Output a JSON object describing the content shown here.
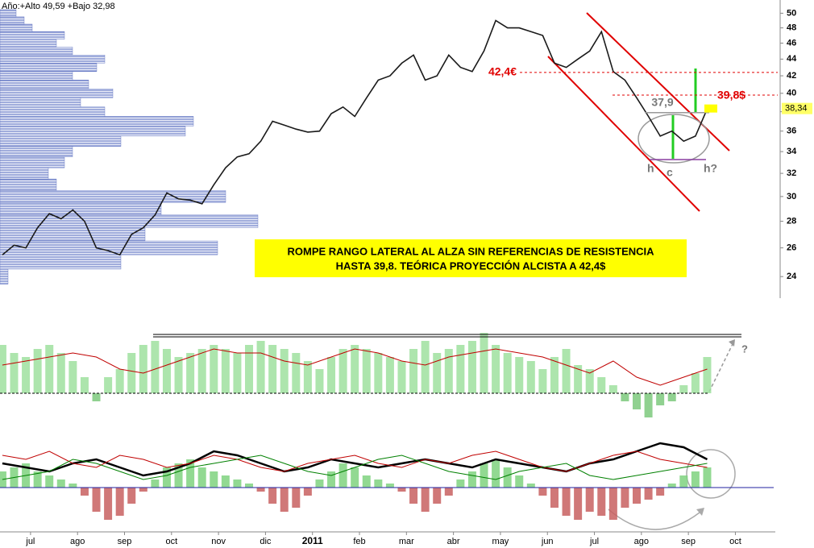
{
  "chart_data": [
    {
      "type": "price",
      "info": "Año:+Alto 49,59 +Bajo 32,98",
      "log_scale": true,
      "xlim": [
        -0.65,
        15.85
      ],
      "ylim": [
        22.7,
        51.3
      ],
      "yticks": [
        24,
        26,
        28,
        30,
        32,
        34,
        36,
        38,
        40,
        42,
        44,
        46,
        48,
        50
      ],
      "color": "#1a1a1a",
      "x": [
        -0.6,
        -0.35,
        -0.1,
        0.15,
        0.4,
        0.65,
        0.9,
        1.15,
        1.4,
        1.65,
        1.9,
        2.15,
        2.4,
        2.65,
        2.9,
        3.15,
        3.4,
        3.65,
        3.9,
        4.15,
        4.4,
        4.65,
        4.9,
        5.15,
        5.4,
        5.65,
        5.9,
        6.15,
        6.4,
        6.65,
        6.9,
        7.15,
        7.4,
        7.65,
        7.9,
        8.15,
        8.4,
        8.65,
        8.9,
        9.15,
        9.4,
        9.65,
        9.9,
        10.15,
        10.4,
        10.65,
        10.9,
        11.15,
        11.4,
        11.65,
        11.9,
        12.15,
        12.4,
        12.65,
        12.9,
        13.15,
        13.4,
        13.65,
        13.9,
        14.15,
        14.4
      ],
      "values": [
        25.5,
        26.2,
        26.0,
        27.5,
        28.6,
        28.2,
        28.9,
        28.0,
        26,
        25.8,
        25.5,
        27,
        27.5,
        28.5,
        30.3,
        29.8,
        29.7,
        29.4,
        31,
        32.5,
        33.5,
        33.8,
        35,
        37,
        36.6,
        36.2,
        35.9,
        36,
        37.8,
        38.5,
        37.5,
        39.5,
        41.5,
        42,
        43.5,
        44.5,
        41.5,
        42,
        44.5,
        43,
        42.5,
        45,
        49,
        48,
        48,
        47.5,
        47,
        43.5,
        43,
        44,
        45,
        47.5,
        42.5,
        41.5,
        39.5,
        37.5,
        35.5,
        36,
        35,
        35.5,
        38.3
      ],
      "volume_profile": {
        "color": "#5a6fc0",
        "prices": [
          24,
          25,
          26,
          27,
          28,
          29,
          30,
          31,
          32,
          33,
          34,
          35,
          36,
          37,
          38,
          39,
          40,
          41,
          42,
          43,
          44,
          45,
          46,
          47,
          48,
          49,
          50
        ],
        "values": [
          10,
          150,
          270,
          180,
          320,
          200,
          280,
          70,
          60,
          80,
          90,
          150,
          230,
          240,
          130,
          100,
          140,
          110,
          90,
          120,
          130,
          90,
          70,
          80,
          40,
          30,
          20
        ]
      },
      "levels": [
        {
          "value": 42.4,
          "label": "42,4€"
        },
        {
          "value": 39.8,
          "label": "39,8$"
        },
        {
          "value": 37.9,
          "label": "37,9"
        }
      ],
      "pattern_labels": [
        "h",
        "c",
        "h?"
      ],
      "last_price": {
        "value": 38.34,
        "label": "38,34"
      },
      "note": [
        "ROMPE RANGO LATERAL AL ALZA SIN REFERENCIAS DE RESISTENCIA",
        "HASTA 39,8. TEÓRICA PROYECCIÓN ALCISTA A 42,4$"
      ]
    },
    {
      "type": "oscillator",
      "xlim": [
        -0.65,
        15.85
      ],
      "ylim": [
        -48,
        100
      ],
      "x": [
        -0.6,
        -0.35,
        -0.1,
        0.15,
        0.4,
        0.65,
        0.9,
        1.15,
        1.4,
        1.65,
        1.9,
        2.15,
        2.4,
        2.65,
        2.9,
        3.15,
        3.4,
        3.65,
        3.9,
        4.15,
        4.4,
        4.65,
        4.9,
        5.15,
        5.4,
        5.65,
        5.9,
        6.15,
        6.4,
        6.65,
        6.9,
        7.15,
        7.4,
        7.65,
        7.9,
        8.15,
        8.4,
        8.65,
        8.9,
        9.15,
        9.4,
        9.65,
        9.9,
        10.15,
        10.4,
        10.65,
        10.9,
        11.15,
        11.4,
        11.65,
        11.9,
        12.15,
        12.4,
        12.65,
        12.9,
        13.15,
        13.4,
        13.65,
        13.9,
        14.15,
        14.4
      ],
      "histogram": {
        "color_positive": "#9fe09f",
        "color_negative": "#7cc97c",
        "values": [
          60,
          50,
          45,
          55,
          60,
          50,
          40,
          20,
          -10,
          20,
          30,
          50,
          60,
          65,
          55,
          45,
          50,
          55,
          60,
          55,
          50,
          60,
          65,
          60,
          55,
          50,
          40,
          30,
          45,
          55,
          60,
          55,
          50,
          45,
          40,
          55,
          65,
          50,
          55,
          60,
          65,
          75,
          60,
          50,
          45,
          40,
          30,
          45,
          55,
          35,
          30,
          20,
          10,
          -10,
          -20,
          -30,
          -15,
          -10,
          10,
          25,
          45
        ]
      },
      "lines": [
        {
          "color": "#c00000",
          "width": 1,
          "x": [
            -0.6,
            -0.1,
            0.4,
            0.9,
            1.4,
            1.9,
            2.4,
            2.9,
            3.4,
            3.9,
            4.4,
            4.9,
            5.4,
            5.9,
            6.4,
            6.9,
            7.4,
            7.9,
            8.4,
            8.9,
            9.4,
            9.9,
            10.4,
            10.9,
            11.4,
            11.9,
            12.4,
            12.9,
            13.4,
            13.9,
            14.4
          ],
          "values": [
            35,
            40,
            45,
            50,
            45,
            30,
            25,
            35,
            45,
            55,
            50,
            50,
            40,
            35,
            45,
            55,
            50,
            40,
            35,
            45,
            50,
            55,
            50,
            45,
            35,
            25,
            40,
            20,
            10,
            20,
            30
          ]
        }
      ],
      "levels": [
        {
          "value": 73,
          "color": "#000"
        }
      ],
      "question": "?"
    },
    {
      "type": "oscillator",
      "xlim": [
        -0.65,
        15.85
      ],
      "ylim": [
        -60,
        80
      ],
      "x": [
        -0.6,
        -0.35,
        -0.1,
        0.15,
        0.4,
        0.65,
        0.9,
        1.15,
        1.4,
        1.65,
        1.9,
        2.15,
        2.4,
        2.65,
        2.9,
        3.15,
        3.4,
        3.65,
        3.9,
        4.15,
        4.4,
        4.65,
        4.9,
        5.15,
        5.4,
        5.65,
        5.9,
        6.15,
        6.4,
        6.65,
        6.9,
        7.15,
        7.4,
        7.65,
        7.9,
        8.15,
        8.4,
        8.65,
        8.9,
        9.15,
        9.4,
        9.65,
        9.9,
        10.15,
        10.4,
        10.65,
        10.9,
        11.15,
        11.4,
        11.65,
        11.9,
        12.15,
        12.4,
        12.65,
        12.9,
        13.15,
        13.4,
        13.65,
        13.9,
        14.15,
        14.4
      ],
      "histogram": {
        "color_positive": "#7fd27f",
        "color_negative": "#c86060",
        "values": [
          20,
          25,
          30,
          20,
          15,
          10,
          5,
          -10,
          -30,
          -40,
          -35,
          -20,
          -5,
          10,
          25,
          30,
          35,
          25,
          20,
          15,
          10,
          5,
          -5,
          -20,
          -30,
          -25,
          -10,
          10,
          20,
          30,
          25,
          15,
          10,
          5,
          -5,
          -20,
          -30,
          -20,
          -10,
          10,
          20,
          30,
          35,
          25,
          15,
          5,
          -10,
          -25,
          -35,
          -40,
          -30,
          -35,
          -40,
          -25,
          -20,
          -15,
          -10,
          5,
          15,
          20,
          25
        ]
      },
      "lines": [
        {
          "color": "#000000",
          "width": 2.5,
          "x": [
            -0.6,
            -0.1,
            0.4,
            0.9,
            1.4,
            1.9,
            2.4,
            2.9,
            3.4,
            3.9,
            4.4,
            4.9,
            5.4,
            5.9,
            6.4,
            6.9,
            7.4,
            7.9,
            8.4,
            8.9,
            9.4,
            9.9,
            10.4,
            10.9,
            11.4,
            11.9,
            12.4,
            12.9,
            13.4,
            13.9,
            14.4
          ],
          "values": [
            30,
            25,
            20,
            30,
            35,
            25,
            15,
            20,
            30,
            45,
            40,
            30,
            20,
            25,
            35,
            30,
            25,
            30,
            35,
            30,
            25,
            35,
            30,
            25,
            20,
            30,
            35,
            45,
            55,
            50,
            35
          ]
        },
        {
          "color": "#c00000",
          "width": 1,
          "x": [
            -0.6,
            -0.1,
            0.4,
            0.9,
            1.4,
            1.9,
            2.4,
            2.9,
            3.4,
            3.9,
            4.4,
            4.9,
            5.4,
            5.9,
            6.4,
            6.9,
            7.4,
            7.9,
            8.4,
            8.9,
            9.4,
            9.9,
            10.4,
            10.9,
            11.4,
            11.9,
            12.4,
            12.9,
            13.4,
            13.9,
            14.4
          ],
          "values": [
            40,
            35,
            45,
            30,
            25,
            40,
            35,
            25,
            30,
            40,
            35,
            25,
            20,
            30,
            35,
            40,
            30,
            25,
            35,
            30,
            40,
            45,
            35,
            25,
            20,
            30,
            40,
            45,
            35,
            30,
            25
          ]
        },
        {
          "color": "#008000",
          "width": 1,
          "x": [
            -0.6,
            -0.1,
            0.4,
            0.9,
            1.4,
            1.9,
            2.4,
            2.9,
            3.4,
            3.9,
            4.4,
            4.9,
            5.4,
            5.9,
            6.4,
            6.9,
            7.4,
            7.9,
            8.4,
            8.9,
            9.4,
            9.9,
            10.4,
            10.9,
            11.4,
            11.9,
            12.4,
            12.9,
            13.4,
            13.9,
            14.4
          ],
          "values": [
            10,
            15,
            20,
            35,
            30,
            20,
            10,
            15,
            25,
            30,
            35,
            40,
            30,
            20,
            15,
            25,
            35,
            40,
            30,
            20,
            15,
            10,
            20,
            25,
            30,
            15,
            10,
            15,
            20,
            25,
            30
          ]
        }
      ],
      "xticks": [
        {
          "value": 0,
          "label": "jul"
        },
        {
          "value": 1,
          "label": "ago"
        },
        {
          "value": 2,
          "label": "sep"
        },
        {
          "value": 3,
          "label": "oct"
        },
        {
          "value": 4,
          "label": "nov"
        },
        {
          "value": 5,
          "label": "dic"
        },
        {
          "value": 6,
          "label": "2011"
        },
        {
          "value": 7,
          "label": "feb"
        },
        {
          "value": 8,
          "label": "mar"
        },
        {
          "value": 9,
          "label": "abr"
        },
        {
          "value": 10,
          "label": "may"
        },
        {
          "value": 11,
          "label": "jun"
        },
        {
          "value": 12,
          "label": "jul"
        },
        {
          "value": 13,
          "label": "ago"
        },
        {
          "value": 14,
          "label": "sep"
        },
        {
          "value": 15,
          "label": "oct"
        }
      ]
    }
  ]
}
